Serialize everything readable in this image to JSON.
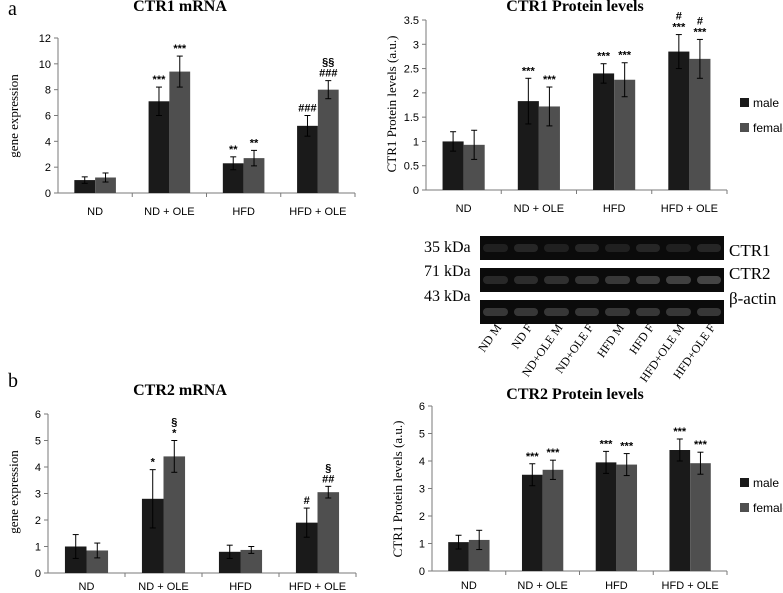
{
  "panel_a": "a",
  "panel_b": "b",
  "chart_data": [
    {
      "id": "c1",
      "type": "bar",
      "title": "CTR1 mRNA",
      "ylabel": "gene expression",
      "ylim": [
        0,
        12
      ],
      "yticks": [
        0,
        2,
        4,
        6,
        8,
        10,
        12
      ],
      "categories": [
        "ND",
        "ND + OLE",
        "HFD",
        "HFD + OLE"
      ],
      "series": [
        {
          "values": [
            1.0,
            7.1,
            2.3,
            5.2
          ],
          "errors": [
            0.25,
            1.1,
            0.5,
            0.8
          ],
          "labels": [
            "",
            "***",
            "**",
            "###"
          ]
        },
        {
          "values": [
            1.2,
            9.4,
            2.7,
            8.0
          ],
          "errors": [
            0.35,
            1.2,
            0.6,
            0.7
          ],
          "labels": [
            "",
            "***",
            "**",
            "§§\n###"
          ]
        }
      ]
    },
    {
      "id": "c2",
      "type": "bar",
      "title": "CTR1 Protein levels",
      "ylabel": "CTR1 Protein levels (a.u.)",
      "ylim": [
        0,
        3.5
      ],
      "yticks": [
        0,
        0.5,
        1,
        1.5,
        2,
        2.5,
        3,
        3.5
      ],
      "categories": [
        "ND",
        "ND + OLE",
        "HFD",
        "HFD + OLE"
      ],
      "series": [
        {
          "name": "male",
          "values": [
            1.0,
            1.83,
            2.4,
            2.85
          ],
          "errors": [
            0.2,
            0.47,
            0.2,
            0.35
          ],
          "labels": [
            "",
            "***",
            "***",
            "#\n***"
          ]
        },
        {
          "name": "female",
          "values": [
            0.93,
            1.72,
            2.27,
            2.7
          ],
          "errors": [
            0.3,
            0.4,
            0.35,
            0.4
          ],
          "labels": [
            "",
            "***",
            "***",
            "#\n***"
          ]
        }
      ]
    },
    {
      "id": "c3",
      "type": "bar",
      "title": "CTR2 mRNA",
      "ylabel": "gene expression",
      "ylim": [
        0,
        6
      ],
      "yticks": [
        0,
        1,
        2,
        3,
        4,
        5,
        6
      ],
      "categories": [
        "ND",
        "ND + OLE",
        "HFD",
        "HFD + OLE"
      ],
      "series": [
        {
          "values": [
            1.0,
            2.8,
            0.8,
            1.9
          ],
          "errors": [
            0.45,
            1.1,
            0.25,
            0.55
          ],
          "labels": [
            "",
            "*",
            "",
            "#"
          ]
        },
        {
          "values": [
            0.85,
            4.4,
            0.87,
            3.05
          ],
          "errors": [
            0.28,
            0.6,
            0.13,
            0.22
          ],
          "labels": [
            "",
            "§\n*",
            "",
            "§\n##"
          ]
        }
      ]
    },
    {
      "id": "c4",
      "type": "bar",
      "title": "CTR2 Protein levels",
      "ylabel": "CTR1 Protein levels (a.u.)",
      "ylim": [
        0,
        6
      ],
      "yticks": [
        0,
        1,
        2,
        3,
        4,
        5,
        6
      ],
      "categories": [
        "ND",
        "ND + OLE",
        "HFD",
        "HFD + OLE"
      ],
      "series": [
        {
          "name": "male",
          "values": [
            1.05,
            3.5,
            3.95,
            4.4
          ],
          "errors": [
            0.25,
            0.4,
            0.4,
            0.4
          ],
          "labels": [
            "",
            "***",
            "***",
            "***"
          ]
        },
        {
          "name": "female",
          "values": [
            1.13,
            3.68,
            3.87,
            3.92
          ],
          "errors": [
            0.35,
            0.35,
            0.4,
            0.4
          ],
          "labels": [
            "",
            "***",
            "***",
            "***"
          ]
        }
      ]
    }
  ],
  "blot": {
    "rows": [
      {
        "kda": "35 kDa",
        "protein": "CTR1"
      },
      {
        "kda": "71 kDa",
        "protein": "CTR2"
      },
      {
        "kda": "43 kDa",
        "protein": "β-actin"
      }
    ],
    "lanes": [
      "ND M",
      "ND F",
      "ND+OLE M",
      "ND+OLE F",
      "HFD M",
      "HFD F",
      "HFD+OLE M",
      "HFD+OLE F"
    ]
  },
  "colors": {
    "male": "#1a1a1a",
    "female": "#4f4f4f"
  }
}
